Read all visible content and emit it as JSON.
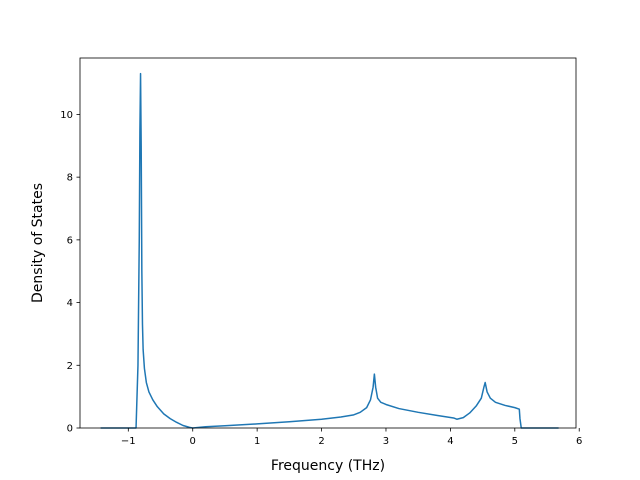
{
  "chart_data": {
    "type": "line",
    "title": "",
    "xlabel": "Frequency (THz)",
    "ylabel": "Density of States",
    "xlim": [
      -1.75,
      5.95
    ],
    "ylim": [
      0,
      11.8
    ],
    "xticks": [
      {
        "value": -1,
        "label": "−1"
      },
      {
        "value": 0,
        "label": "0"
      },
      {
        "value": 1,
        "label": "1"
      },
      {
        "value": 2,
        "label": "2"
      },
      {
        "value": 3,
        "label": "3"
      },
      {
        "value": 4,
        "label": "4"
      },
      {
        "value": 5,
        "label": "5"
      },
      {
        "value": 6,
        "label": "6"
      }
    ],
    "yticks": [
      {
        "value": 0,
        "label": "0"
      },
      {
        "value": 2,
        "label": "2"
      },
      {
        "value": 4,
        "label": "4"
      },
      {
        "value": 6,
        "label": "6"
      },
      {
        "value": 8,
        "label": "8"
      },
      {
        "value": 10,
        "label": "10"
      }
    ],
    "grid": false,
    "legend": "none",
    "series": [
      {
        "color": "#1f77b4",
        "x": [
          -1.43,
          -0.88,
          -0.85,
          -0.83,
          -0.82,
          -0.81,
          -0.8,
          -0.79,
          -0.78,
          -0.77,
          -0.75,
          -0.72,
          -0.68,
          -0.62,
          -0.55,
          -0.45,
          -0.35,
          -0.25,
          -0.15,
          -0.05,
          0.0,
          0.2,
          0.5,
          1.0,
          1.5,
          2.0,
          2.3,
          2.5,
          2.6,
          2.7,
          2.76,
          2.8,
          2.82,
          2.84,
          2.87,
          2.92,
          3.0,
          3.2,
          3.5,
          3.8,
          4.05,
          4.1,
          4.2,
          4.3,
          4.4,
          4.48,
          4.52,
          4.54,
          4.57,
          4.62,
          4.7,
          4.85,
          5.0,
          5.07,
          5.08,
          5.1,
          5.68
        ],
        "y": [
          0,
          0,
          2.0,
          6.0,
          9.5,
          11.3,
          9.0,
          5.0,
          3.3,
          2.5,
          1.9,
          1.45,
          1.15,
          0.9,
          0.68,
          0.45,
          0.3,
          0.18,
          0.08,
          0.02,
          0.0,
          0.04,
          0.07,
          0.13,
          0.2,
          0.28,
          0.35,
          0.42,
          0.5,
          0.65,
          0.9,
          1.3,
          1.72,
          1.3,
          0.95,
          0.82,
          0.75,
          0.62,
          0.5,
          0.4,
          0.32,
          0.28,
          0.33,
          0.48,
          0.7,
          0.95,
          1.3,
          1.45,
          1.15,
          0.95,
          0.82,
          0.72,
          0.65,
          0.6,
          0.3,
          0.0,
          0.0
        ]
      }
    ]
  }
}
